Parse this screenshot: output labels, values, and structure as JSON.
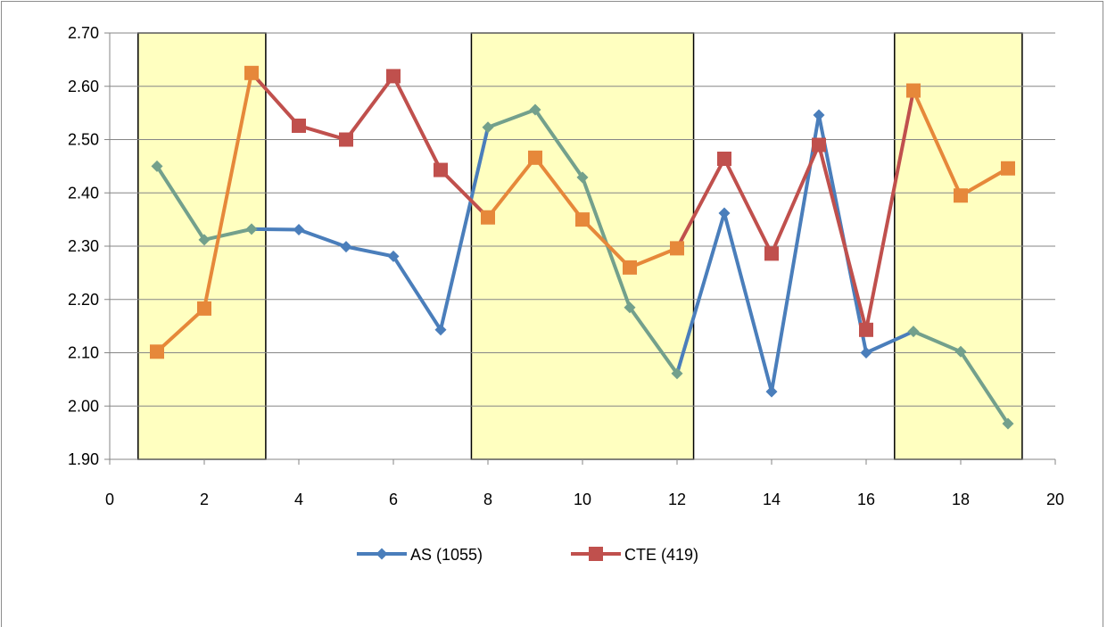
{
  "chart_data": {
    "type": "line",
    "x": [
      1,
      2,
      3,
      4,
      5,
      6,
      7,
      8,
      9,
      10,
      11,
      12,
      13,
      14,
      15,
      16,
      17,
      18,
      19
    ],
    "xlim": [
      0,
      20
    ],
    "ylim": [
      1.9,
      2.7
    ],
    "x_ticks": [
      0,
      2,
      4,
      6,
      8,
      10,
      12,
      14,
      16,
      18,
      20
    ],
    "x_tick_labels": [
      "0",
      "2",
      "4",
      "6",
      "8",
      "10",
      "12",
      "14",
      "16",
      "18",
      "20"
    ],
    "y_ticks": [
      1.9,
      2.0,
      2.1,
      2.2,
      2.3,
      2.4,
      2.5,
      2.6,
      2.7
    ],
    "y_tick_labels": [
      "1.90",
      "2.00",
      "2.10",
      "2.20",
      "2.30",
      "2.40",
      "2.50",
      "2.60",
      "2.70"
    ],
    "grid": "horizontal",
    "legend_position": "bottom",
    "highlight_regions": [
      {
        "x_range": [
          0.6,
          3.3
        ],
        "color": "#ffffc0"
      },
      {
        "x_range": [
          7.65,
          12.35
        ],
        "color": "#ffffc0"
      },
      {
        "x_range": [
          16.6,
          19.3
        ],
        "color": "#ffffc0"
      }
    ],
    "series": [
      {
        "name": "AS (1055)",
        "marker": "diamond",
        "values": [
          2.45,
          2.312,
          2.332,
          2.331,
          2.299,
          2.281,
          2.143,
          2.523,
          2.556,
          2.429,
          2.185,
          2.061,
          2.362,
          2.027,
          2.546,
          2.1,
          2.14,
          2.102,
          1.967
        ],
        "color": "#4a7ebb",
        "highlight_color": "#73a08c"
      },
      {
        "name": "CTE (419)",
        "marker": "square",
        "values": [
          2.102,
          2.183,
          2.625,
          2.526,
          2.5,
          2.619,
          2.443,
          2.354,
          2.466,
          2.35,
          2.26,
          2.296,
          2.464,
          2.286,
          2.49,
          2.143,
          2.592,
          2.395,
          2.446
        ],
        "color": "#c0504d",
        "highlight_color": "#e6883a"
      }
    ]
  }
}
